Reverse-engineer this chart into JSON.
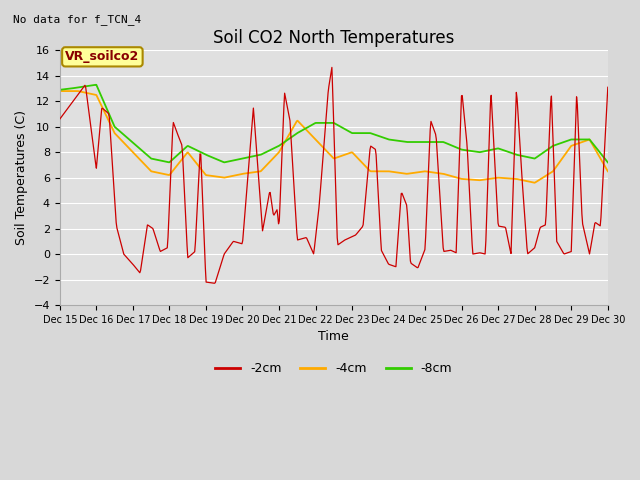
{
  "title": "Soil CO2 North Temperatures",
  "subtitle": "No data for f_TCN_4",
  "box_label": "VR_soilco2",
  "ylabel": "Soil Temperatures (C)",
  "xlabel": "Time",
  "ylim": [
    -4,
    16
  ],
  "yticks": [
    -4,
    -2,
    0,
    2,
    4,
    6,
    8,
    10,
    12,
    14,
    16
  ],
  "xtick_labels": [
    "Dec 15",
    "Dec 16",
    "Dec 17",
    "Dec 18",
    "Dec 19",
    "Dec 20",
    "Dec 21",
    "Dec 22",
    "Dec 23",
    "Dec 24",
    "Dec 25",
    "Dec 26",
    "Dec 27",
    "Dec 28",
    "Dec 29",
    "Dec 30"
  ],
  "legend_labels": [
    "-2cm",
    "-4cm",
    "-8cm"
  ],
  "legend_colors": [
    "#cc0000",
    "#ffaa00",
    "#33cc00"
  ],
  "bg_color": "#d8d8d8",
  "plot_bg_color": "#e0e0e0",
  "grid_color": "#ffffff",
  "title_fontsize": 12,
  "label_fontsize": 9,
  "tick_fontsize": 8
}
